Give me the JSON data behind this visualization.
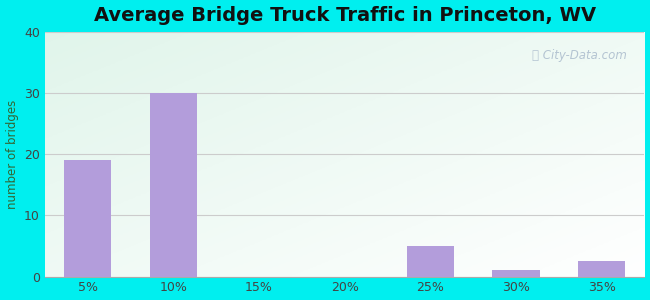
{
  "title": "Average Bridge Truck Traffic in Princeton, WV",
  "xlabel": "",
  "ylabel": "number of bridges",
  "categories": [
    "5%",
    "10%",
    "15%",
    "20%",
    "25%",
    "30%",
    "35%"
  ],
  "values": [
    19,
    30,
    0,
    0,
    5,
    1,
    2.5
  ],
  "bar_color": "#b39ddb",
  "bar_width": 0.55,
  "ylim": [
    0,
    40
  ],
  "yticks": [
    0,
    10,
    20,
    30,
    40
  ],
  "background_color": "#00efef",
  "title_fontsize": 14,
  "axis_label_fontsize": 8.5,
  "tick_fontsize": 9,
  "title_color": "#111111",
  "axis_label_color": "#336633",
  "tick_color": "#444444",
  "watermark": "ⓘ City-Data.com",
  "grid_color": "#cccccc",
  "plot_left_color": "#c8eec8",
  "plot_right_color": "#e8f8f8"
}
